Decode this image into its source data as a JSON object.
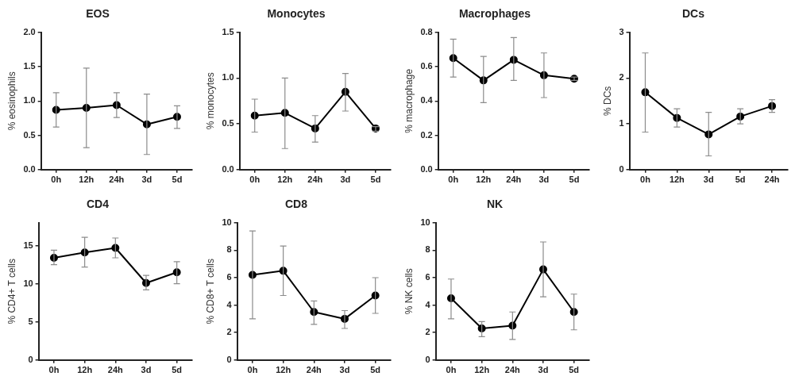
{
  "chart_data": [
    {
      "type": "line",
      "title": "EOS",
      "ylabel": "% eosinophils",
      "categories": [
        "0h",
        "12h",
        "24h",
        "3d",
        "5d"
      ],
      "ylim": [
        0,
        2
      ],
      "yticks": [
        {
          "value": 0,
          "label": "0.0"
        },
        {
          "value": 0.5,
          "label": "0.5"
        },
        {
          "value": 1,
          "label": "1.0"
        },
        {
          "value": 1.5,
          "label": "1.5"
        },
        {
          "value": 2,
          "label": "2.0"
        }
      ],
      "marker": "circle",
      "grid": false,
      "legend": false,
      "series": [
        {
          "color": "#000000",
          "values": [
            0.87,
            0.9,
            0.94,
            0.66,
            0.77
          ],
          "errors": [
            [
              0.62,
              1.12
            ],
            [
              0.32,
              1.48
            ],
            [
              0.76,
              1.12
            ],
            [
              0.22,
              1.1
            ],
            [
              0.6,
              0.93
            ]
          ]
        }
      ]
    },
    {
      "type": "line",
      "title": "Monocytes",
      "ylabel": "% monocytes",
      "categories": [
        "0h",
        "12h",
        "24h",
        "3d",
        "5d"
      ],
      "ylim": [
        0,
        1.5
      ],
      "yticks": [
        {
          "value": 0,
          "label": "0.0"
        },
        {
          "value": 0.5,
          "label": "0.5"
        },
        {
          "value": 1,
          "label": "1.0"
        },
        {
          "value": 1.5,
          "label": "1.5"
        }
      ],
      "marker": "circle",
      "grid": false,
      "legend": false,
      "series": [
        {
          "color": "#000000",
          "values": [
            0.59,
            0.62,
            0.45,
            0.85,
            0.45
          ],
          "errors": [
            [
              0.41,
              0.77
            ],
            [
              0.23,
              1.0
            ],
            [
              0.3,
              0.59
            ],
            [
              0.64,
              1.05
            ],
            [
              0.42,
              0.47
            ]
          ]
        }
      ]
    },
    {
      "type": "line",
      "title": "Macrophages",
      "ylabel": "% macrophage",
      "categories": [
        "0h",
        "12h",
        "24h",
        "3d",
        "5d"
      ],
      "ylim": [
        0,
        0.8
      ],
      "yticks": [
        {
          "value": 0,
          "label": "0.0"
        },
        {
          "value": 0.2,
          "label": "0.2"
        },
        {
          "value": 0.4,
          "label": "0.4"
        },
        {
          "value": 0.6,
          "label": "0.6"
        },
        {
          "value": 0.8,
          "label": "0.8"
        }
      ],
      "marker": "circle",
      "grid": false,
      "legend": false,
      "series": [
        {
          "color": "#000000",
          "values": [
            0.65,
            0.52,
            0.64,
            0.55,
            0.53
          ],
          "errors": [
            [
              0.54,
              0.76
            ],
            [
              0.39,
              0.66
            ],
            [
              0.52,
              0.77
            ],
            [
              0.42,
              0.68
            ],
            [
              0.52,
              0.54
            ]
          ]
        }
      ]
    },
    {
      "type": "line",
      "title": "DCs",
      "ylabel": "% DCs",
      "categories": [
        "0h",
        "12h",
        "3d",
        "5d",
        "24h"
      ],
      "ylim": [
        0,
        3
      ],
      "yticks": [
        0,
        1,
        2,
        3
      ],
      "marker": "circle",
      "grid": false,
      "legend": false,
      "series": [
        {
          "color": "#000000",
          "values": [
            1.69,
            1.13,
            0.77,
            1.16,
            1.39
          ],
          "errors": [
            [
              0.82,
              2.55
            ],
            [
              0.93,
              1.33
            ],
            [
              0.3,
              1.25
            ],
            [
              1.0,
              1.33
            ],
            [
              1.25,
              1.53
            ]
          ]
        }
      ]
    },
    {
      "type": "line",
      "title": "CD4",
      "ylabel": "% CD4+ T cells",
      "categories": [
        "0h",
        "12h",
        "24h",
        "3d",
        "5d"
      ],
      "ylim": [
        0,
        18
      ],
      "yticks": [
        0,
        5,
        10,
        15
      ],
      "marker": "circle",
      "grid": false,
      "legend": false,
      "series": [
        {
          "color": "#000000",
          "values": [
            13.4,
            14.1,
            14.7,
            10.1,
            11.5
          ],
          "errors": [
            [
              12.5,
              14.4
            ],
            [
              12.2,
              16.1
            ],
            [
              13.4,
              16.0
            ],
            [
              9.2,
              11.1
            ],
            [
              10.0,
              12.9
            ]
          ]
        }
      ]
    },
    {
      "type": "line",
      "title": "CD8",
      "ylabel": "% CD8+ T cells",
      "categories": [
        "0h",
        "12h",
        "24h",
        "3d",
        "5d"
      ],
      "ylim": [
        0,
        10
      ],
      "yticks": [
        0,
        2,
        4,
        6,
        8,
        10
      ],
      "marker": "circle",
      "grid": false,
      "legend": false,
      "series": [
        {
          "color": "#000000",
          "values": [
            6.2,
            6.5,
            3.5,
            3.0,
            4.7
          ],
          "errors": [
            [
              3.0,
              9.4
            ],
            [
              4.7,
              8.3
            ],
            [
              2.6,
              4.3
            ],
            [
              2.3,
              3.6
            ],
            [
              3.4,
              6.0
            ]
          ]
        }
      ]
    },
    {
      "type": "line",
      "title": "NK",
      "ylabel": "% NK cells",
      "categories": [
        "0h",
        "12h",
        "24h",
        "3d",
        "5d"
      ],
      "ylim": [
        0,
        10
      ],
      "yticks": [
        0,
        2,
        4,
        6,
        8,
        10
      ],
      "marker": "circle",
      "grid": false,
      "legend": false,
      "series": [
        {
          "color": "#000000",
          "values": [
            4.5,
            2.3,
            2.5,
            6.6,
            3.5
          ],
          "errors": [
            [
              3.0,
              5.9
            ],
            [
              1.7,
              2.8
            ],
            [
              1.5,
              3.5
            ],
            [
              4.6,
              8.6
            ],
            [
              2.2,
              4.8
            ]
          ]
        }
      ]
    }
  ]
}
